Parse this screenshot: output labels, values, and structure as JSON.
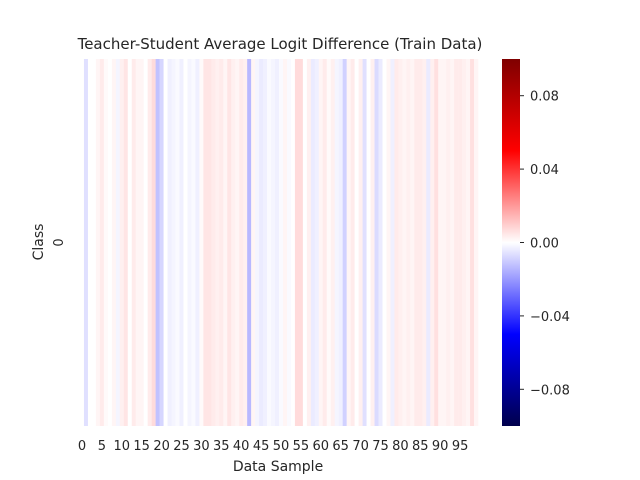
{
  "chart_data": {
    "type": "heatmap",
    "title": "Teacher-Student Average Logit Difference (Train Data)",
    "xlabel": "Data Sample",
    "ylabel": "Class",
    "y_categories": [
      "0"
    ],
    "x_tick_labels": [
      "0",
      "5",
      "10",
      "15",
      "20",
      "25",
      "30",
      "35",
      "40",
      "45",
      "50",
      "55",
      "60",
      "65",
      "70",
      "75",
      "80",
      "85",
      "90",
      "95"
    ],
    "x_tick_values": [
      0,
      5,
      10,
      15,
      20,
      25,
      30,
      35,
      40,
      45,
      50,
      55,
      60,
      65,
      70,
      75,
      80,
      85,
      90,
      95
    ],
    "colormap": "seismic",
    "color_range": [
      -0.1,
      0.1
    ],
    "colorbar_ticks": [
      0.08,
      0.04,
      0.0,
      -0.04,
      -0.08
    ],
    "colorbar_tick_labels": [
      "0.08",
      "0.04",
      "0.00",
      "−0.04",
      "−0.08"
    ],
    "values": [
      [
        0.0,
        -0.006,
        0.0,
        0.0,
        0.002,
        0.004,
        0.001,
        0.0,
        0.002,
        -0.002,
        0.003,
        0.005,
        0.0,
        0.004,
        0.002,
        0.002,
        0.0,
        0.004,
        0.007,
        -0.012,
        -0.008,
        0.0,
        -0.003,
        -0.002,
        -0.001,
        -0.003,
        0.0,
        -0.002,
        -0.001,
        -0.003,
        0.001,
        0.005,
        0.005,
        0.004,
        0.003,
        0.004,
        0.002,
        0.005,
        0.003,
        0.002,
        0.004,
        0.003,
        -0.014,
        0.002,
        -0.002,
        -0.004,
        -0.003,
        -0.001,
        -0.002,
        -0.003,
        -0.001,
        0.002,
        -0.001,
        0.0,
        0.007,
        0.007,
        0.0,
        0.003,
        -0.004,
        -0.003,
        0.002,
        0.004,
        0.001,
        0.003,
        -0.002,
        -0.003,
        -0.009,
        0.002,
        0.004,
        0.0,
        0.003,
        -0.006,
        0.0,
        0.003,
        -0.007,
        -0.004,
        0.0,
        0.002,
        -0.003,
        0.004,
        0.003,
        0.002,
        0.003,
        0.002,
        0.004,
        0.004,
        0.003,
        -0.004,
        0.003,
        0.006,
        0.002,
        0.002,
        0.003,
        0.002,
        0.004,
        0.004,
        0.003,
        0.002,
        0.006,
        0.002
      ]
    ]
  }
}
